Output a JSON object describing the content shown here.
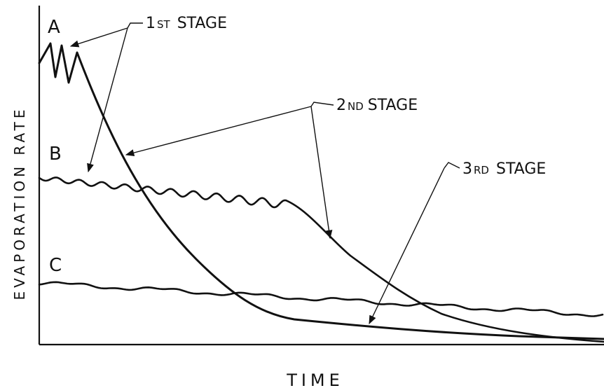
{
  "figure": {
    "y_axis_label": "EVAPORATION RATE",
    "x_axis_label": "TIME",
    "curves": [
      {
        "id": "A",
        "label": "A"
      },
      {
        "id": "B",
        "label": "B"
      },
      {
        "id": "C",
        "label": "C"
      }
    ],
    "stages": {
      "first": {
        "ordinal": "1",
        "suffix": "ST",
        "word": "STAGE"
      },
      "second": {
        "ordinal": "2",
        "suffix": "ND",
        "word": "STAGE"
      },
      "third": {
        "ordinal": "3",
        "suffix": "RD",
        "word": "STAGE"
      }
    },
    "ink_color": "#111111",
    "paper_color": "#ffffff"
  }
}
